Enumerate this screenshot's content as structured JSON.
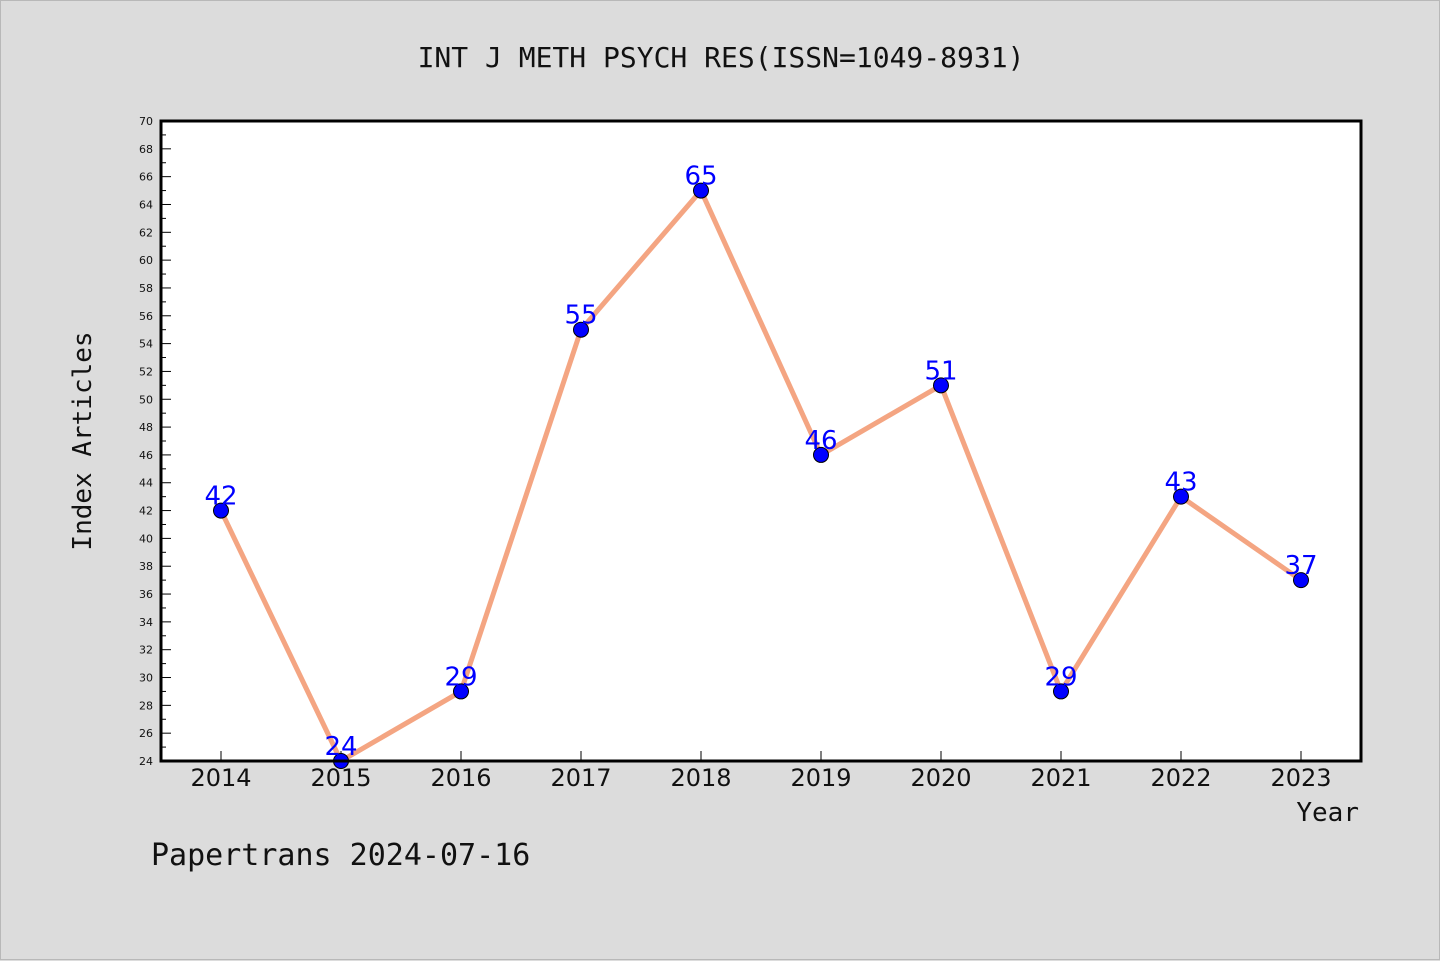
{
  "chart_data": {
    "type": "line",
    "title": "INT J METH PSYCH RES(ISSN=1049-8931)",
    "xlabel": "Year",
    "ylabel": "Index Articles",
    "categories": [
      "2014",
      "2015",
      "2016",
      "2017",
      "2018",
      "2019",
      "2020",
      "2021",
      "2022",
      "2023"
    ],
    "series": [
      {
        "values": [
          42,
          24,
          29,
          55,
          65,
          46,
          51,
          29,
          43,
          37
        ]
      }
    ],
    "ylim": [
      24,
      70
    ],
    "y_ticks": [
      "24",
      "26",
      "28",
      "30",
      "32",
      "34",
      "36",
      "38",
      "40",
      "42",
      "44",
      "46",
      "48",
      "50",
      "52",
      "54",
      "56",
      "58",
      "60",
      "62",
      "64",
      "66",
      "68",
      "70"
    ],
    "grid": false,
    "line_color": "#f4a582",
    "marker_color": "#0000ff",
    "label_color": "#0000ff"
  },
  "footer": {
    "text": "Papertrans 2024-07-16"
  }
}
